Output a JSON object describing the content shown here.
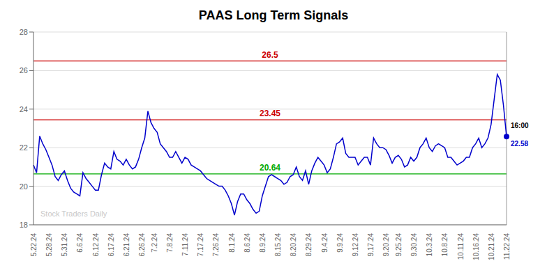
{
  "chart_data": {
    "type": "line",
    "title": "PAAS Long Term Signals",
    "color": "#0000cc",
    "categories": [
      "5.22.24",
      null,
      null,
      null,
      null,
      "5.28.24",
      null,
      null,
      null,
      null,
      "5.31.24",
      null,
      null,
      null,
      null,
      "6.6.24",
      null,
      null,
      null,
      null,
      "6.12.24",
      null,
      null,
      null,
      null,
      "6.17.24",
      null,
      null,
      null,
      null,
      "6.21.24",
      null,
      null,
      null,
      null,
      "6.26.24",
      null,
      null,
      null,
      "7.2.24",
      null,
      null,
      null,
      null,
      "7.8.24",
      null,
      null,
      null,
      null,
      "7.11.24",
      null,
      null,
      null,
      null,
      "7.17.24",
      null,
      null,
      null,
      null,
      "7.26.24",
      null,
      null,
      null,
      null,
      "8.1.24",
      null,
      null,
      null,
      null,
      "8.6.24",
      null,
      null,
      null,
      null,
      "8.9.24",
      null,
      null,
      null,
      null,
      "8.15.24",
      null,
      null,
      null,
      null,
      "8.20.24",
      null,
      null,
      null,
      null,
      "8.29.24",
      null,
      null,
      null,
      null,
      "9.4.24",
      null,
      null,
      null,
      null,
      "9.9.24",
      null,
      null,
      null,
      null,
      "9.12.24",
      null,
      null,
      null,
      null,
      "9.17.24",
      null,
      null,
      null,
      null,
      "9.20.24",
      null,
      null,
      null,
      "9.25.24",
      null,
      null,
      null,
      null,
      "9.30.24",
      null,
      null,
      null,
      null,
      "10.3.24",
      null,
      null,
      null,
      null,
      "10.8.24",
      null,
      null,
      null,
      null,
      "10.11.24",
      null,
      null,
      null,
      null,
      "10.16.24",
      null,
      null,
      null,
      null,
      "10.21.24",
      null,
      null,
      null,
      null,
      "11.22.24"
    ],
    "values": [
      21.1,
      20.7,
      22.6,
      22.2,
      21.9,
      21.5,
      21.1,
      20.5,
      20.3,
      20.6,
      20.8,
      20.3,
      19.9,
      19.7,
      19.6,
      19.5,
      20.7,
      20.4,
      20.2,
      20.0,
      19.8,
      19.8,
      20.6,
      21.2,
      21.0,
      20.9,
      21.8,
      21.4,
      21.3,
      21.1,
      21.4,
      21.1,
      20.9,
      21.0,
      21.4,
      22.0,
      22.5,
      23.9,
      23.3,
      23.0,
      22.8,
      22.2,
      22.0,
      21.8,
      21.5,
      21.5,
      21.8,
      21.5,
      21.2,
      21.5,
      21.4,
      21.1,
      21.0,
      20.9,
      20.8,
      20.6,
      20.4,
      20.3,
      20.2,
      20.1,
      20.0,
      20.0,
      19.8,
      19.5,
      19.1,
      18.5,
      19.2,
      19.6,
      19.6,
      19.3,
      19.1,
      18.8,
      18.6,
      18.7,
      19.5,
      20.0,
      20.5,
      20.6,
      20.5,
      20.4,
      20.3,
      20.1,
      20.2,
      20.5,
      20.6,
      21.0,
      20.5,
      20.3,
      20.8,
      20.1,
      20.8,
      21.2,
      21.5,
      21.3,
      21.1,
      20.7,
      20.9,
      21.5,
      22.2,
      22.3,
      22.5,
      21.7,
      21.5,
      21.5,
      21.5,
      21.1,
      21.3,
      21.5,
      21.5,
      21.1,
      22.5,
      22.2,
      22.0,
      22.0,
      21.9,
      21.6,
      21.2,
      21.5,
      21.6,
      21.4,
      21.0,
      21.1,
      21.5,
      21.3,
      21.5,
      22.0,
      22.2,
      22.5,
      22.0,
      21.8,
      22.1,
      22.2,
      22.1,
      22.0,
      21.5,
      21.5,
      21.3,
      21.1,
      21.2,
      21.3,
      21.5,
      21.5,
      22.0,
      22.2,
      22.5,
      22.0,
      22.2,
      22.5,
      23.2,
      24.5,
      25.8,
      25.5,
      24.2,
      22.58
    ],
    "ylim": [
      18,
      28
    ],
    "yticks": [
      18,
      20,
      22,
      24,
      26,
      28
    ],
    "grid": true,
    "reference_lines": [
      {
        "value": 26.5,
        "label": "26.5",
        "color": "#cc0000"
      },
      {
        "value": 23.45,
        "label": "23.45",
        "color": "#cc0000"
      },
      {
        "value": 20.64,
        "label": "20.64",
        "color": "#00aa00"
      }
    ],
    "annotations": [
      "16:00",
      "22.58"
    ],
    "watermark": "Stock Traders Daily"
  }
}
